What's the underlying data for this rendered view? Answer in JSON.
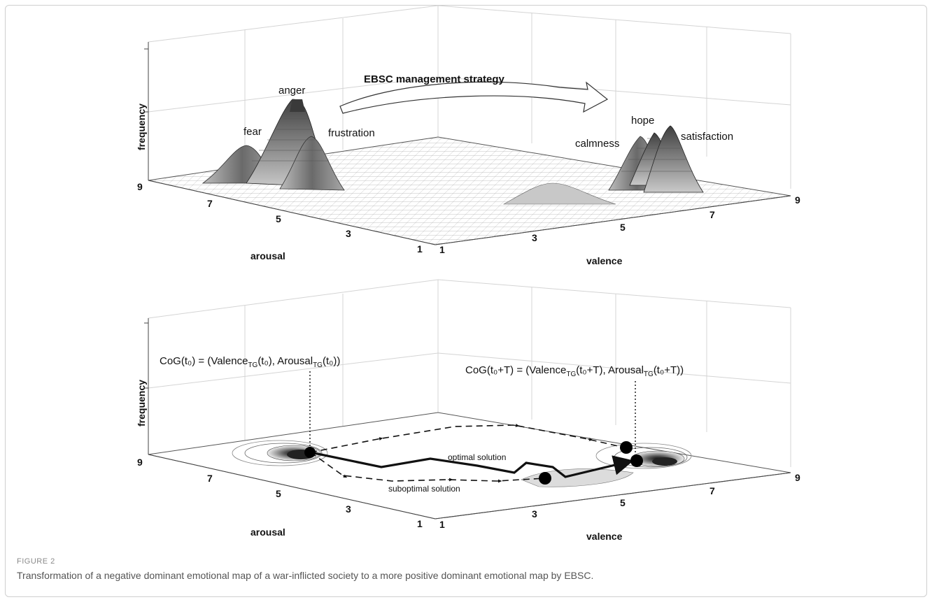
{
  "figure": {
    "label": "FIGURE 2",
    "caption": "Transformation of a negative dominant emotional map of a war-inflicted society to a more positive dominant emotional map by EBSC."
  },
  "top_panel": {
    "z_label": "frequency",
    "x_label": "arousal",
    "y_label": "valence",
    "arousal_ticks": [
      "9",
      "7",
      "5",
      "3",
      "1"
    ],
    "valence_ticks": [
      "1",
      "3",
      "5",
      "7",
      "9"
    ],
    "strategy_label": "EBSC management strategy",
    "emotions": {
      "anger": "anger",
      "fear": "fear",
      "frustration": "frustration",
      "hope": "hope",
      "calmness": "calmness",
      "satisfaction": "satisfaction"
    }
  },
  "bottom_panel": {
    "z_label": "frequency",
    "x_label": "arousal",
    "y_label": "valence",
    "arousal_ticks": [
      "9",
      "7",
      "5",
      "3",
      "1"
    ],
    "valence_ticks": [
      "1",
      "3",
      "5",
      "7",
      "9"
    ],
    "cog_start": "CoG(t₀) = (Valence<sub>TG</sub>(t₀), Arousal<sub>TG</sub>(t₀))",
    "cog_end": "CoG(t₀+T) = (Valence<sub>TG</sub>(t₀+T), Arousal<sub>TG</sub>(t₀+T))",
    "optimal_label": "optimal solution",
    "suboptimal_label": "suboptimal solution"
  },
  "colors": {
    "peak_dark": "#4a4a4a",
    "peak_mid": "#8c8c8c",
    "peak_light": "#d0d0d0",
    "floor_grid": "#9a9a9a"
  }
}
